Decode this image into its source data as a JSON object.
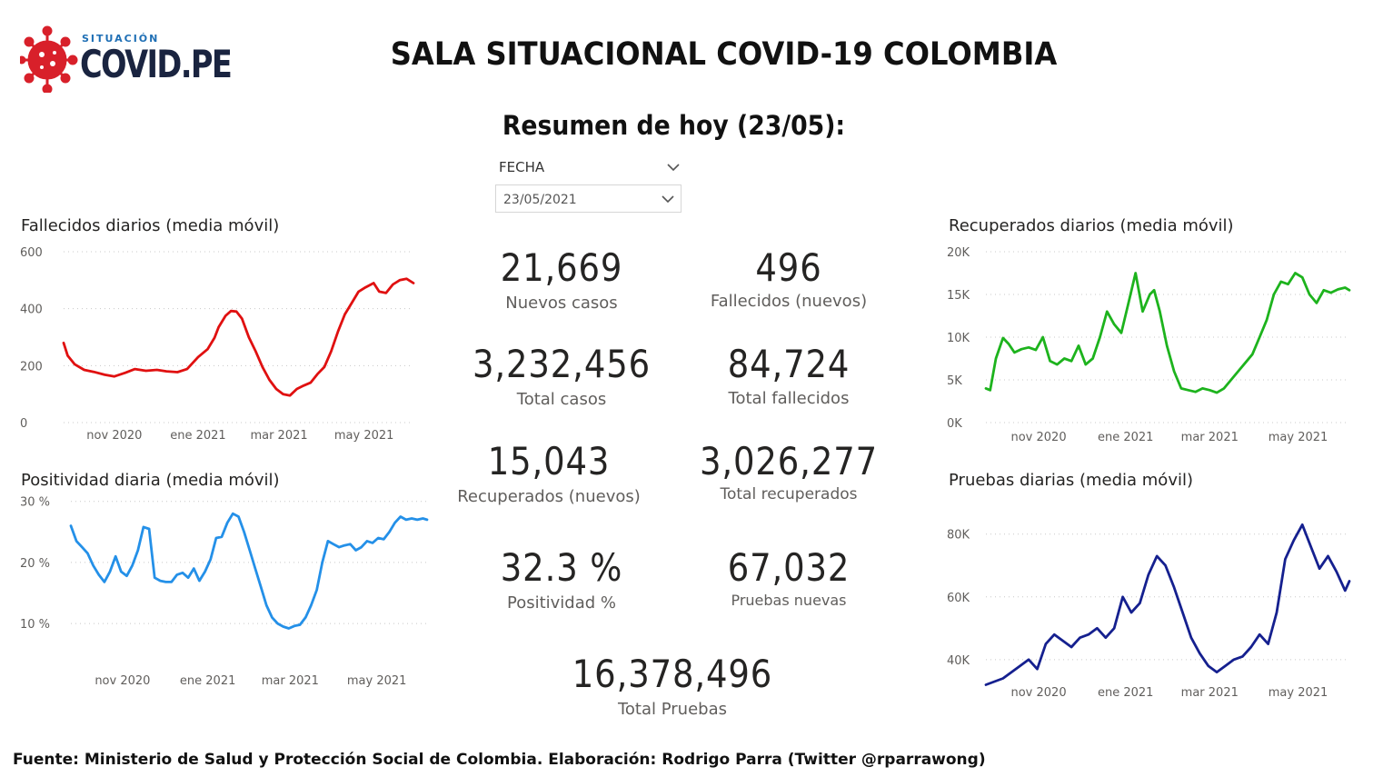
{
  "logo": {
    "small_text": "SITUACIÓN",
    "big_text": "COVID.PE",
    "icon": "virus-icon"
  },
  "header": {
    "title": "SALA SITUACIONAL COVID-19 COLOMBIA",
    "subtitle": "Resumen de hoy (23/05):"
  },
  "slicer": {
    "label": "FECHA",
    "value": "23/05/2021",
    "icon": "chevron-down-icon"
  },
  "kpis": {
    "nuevos_casos": {
      "value": "21,669",
      "label": "Nuevos casos"
    },
    "fallecidos_nuevos": {
      "value": "496",
      "label": "Fallecidos (nuevos)"
    },
    "total_casos": {
      "value": "3,232,456",
      "label": "Total casos"
    },
    "total_fallecidos": {
      "value": "84,724",
      "label": "Total fallecidos"
    },
    "recuperados_nuevos": {
      "value": "15,043",
      "label": "Recuperados (nuevos)"
    },
    "total_recuperados": {
      "value": "3,026,277",
      "label": "Total recuperados"
    },
    "positividad": {
      "value": "32.3 %",
      "label": "Positividad %"
    },
    "pruebas_nuevas": {
      "value": "67,032",
      "label": "Pruebas nuevas"
    },
    "total_pruebas": {
      "value": "16,378,496",
      "label": "Total Pruebas"
    }
  },
  "chart_data": [
    {
      "id": "fallecidos",
      "type": "line",
      "title": "Fallecidos diarios (media móvil)",
      "color": "#e01010",
      "ylim": [
        0,
        600
      ],
      "yticks": [
        0,
        200,
        400,
        600
      ],
      "ytick_labels": [
        "0",
        "200",
        "400",
        "600"
      ],
      "xticks": [
        "nov 2020",
        "ene 2021",
        "mar 2021",
        "may 2021"
      ],
      "xtick_positions": [
        37,
        98,
        157,
        219
      ],
      "xlim": [
        0,
        255
      ],
      "grid": true,
      "x": [
        0,
        3,
        8,
        15,
        22,
        30,
        37,
        45,
        52,
        60,
        68,
        75,
        83,
        90,
        98,
        105,
        110,
        113,
        118,
        122,
        126,
        130,
        135,
        140,
        145,
        150,
        155,
        160,
        165,
        170,
        175,
        180,
        185,
        190,
        195,
        200,
        205,
        210,
        215,
        220,
        226,
        230,
        235,
        240,
        245,
        250,
        255
      ],
      "y": [
        280,
        235,
        205,
        185,
        178,
        168,
        162,
        175,
        188,
        182,
        185,
        180,
        177,
        188,
        230,
        258,
        298,
        335,
        375,
        392,
        390,
        365,
        300,
        250,
        195,
        150,
        118,
        100,
        95,
        118,
        130,
        140,
        170,
        195,
        250,
        320,
        380,
        420,
        460,
        475,
        490,
        460,
        455,
        485,
        500,
        505,
        490
      ]
    },
    {
      "id": "positividad",
      "type": "line",
      "title": "Positividad diaria (media móvil)",
      "color": "#2490e8",
      "ylim": [
        6,
        31
      ],
      "yticks": [
        10,
        20,
        30
      ],
      "ytick_labels": [
        "10 %",
        "20 %",
        "30 %"
      ],
      "xticks": [
        "nov 2020",
        "ene 2021",
        "mar 2021",
        "may 2021"
      ],
      "xtick_positions": [
        37,
        98,
        157,
        219
      ],
      "xlim": [
        0,
        255
      ],
      "grid": true,
      "x": [
        0,
        4,
        8,
        12,
        16,
        20,
        24,
        28,
        32,
        36,
        40,
        44,
        48,
        52,
        56,
        60,
        64,
        68,
        72,
        76,
        80,
        84,
        88,
        92,
        96,
        100,
        104,
        108,
        112,
        116,
        120,
        124,
        128,
        132,
        136,
        140,
        144,
        148,
        152,
        156,
        160,
        164,
        168,
        172,
        176,
        180,
        184,
        188,
        192,
        196,
        200,
        204,
        208,
        212,
        216,
        220,
        224,
        228,
        232,
        236,
        240,
        244,
        248,
        252,
        255
      ],
      "y": [
        26,
        23.5,
        22.5,
        21.5,
        19.5,
        18,
        16.8,
        18.5,
        21,
        18.5,
        17.8,
        19.5,
        22,
        25.8,
        25.5,
        17.5,
        17,
        16.8,
        16.8,
        18,
        18.3,
        17.5,
        19,
        17,
        18.5,
        20.5,
        24,
        24.2,
        26.5,
        28,
        27.5,
        25,
        22,
        19,
        16,
        13,
        11,
        10,
        9.5,
        9.2,
        9.6,
        9.8,
        11,
        13,
        15.5,
        20,
        23.5,
        23,
        22.5,
        22.8,
        23,
        22,
        22.5,
        23.5,
        23.2,
        24,
        23.8,
        25,
        26.5,
        27.5,
        27,
        27.2,
        27,
        27.2,
        27
      ]
    },
    {
      "id": "recuperados",
      "type": "line",
      "title": "Recuperados diarios (media móvil)",
      "color": "#1db31d",
      "ylim": [
        0,
        20000
      ],
      "yticks": [
        0,
        5000,
        10000,
        15000,
        20000
      ],
      "ytick_labels": [
        "0K",
        "5K",
        "10K",
        "15K",
        "20K"
      ],
      "xticks": [
        "nov 2020",
        "ene 2021",
        "mar 2021",
        "may 2021"
      ],
      "xtick_positions": [
        37,
        98,
        157,
        219
      ],
      "xlim": [
        0,
        255
      ],
      "grid": true,
      "x": [
        0,
        3,
        7,
        12,
        16,
        20,
        25,
        30,
        35,
        40,
        45,
        50,
        55,
        60,
        65,
        70,
        75,
        80,
        85,
        90,
        95,
        100,
        105,
        110,
        115,
        118,
        122,
        127,
        132,
        137,
        142,
        147,
        152,
        157,
        162,
        167,
        172,
        177,
        182,
        187,
        192,
        197,
        202,
        207,
        212,
        217,
        222,
        227,
        232,
        237,
        242,
        247,
        252,
        255
      ],
      "y": [
        4000,
        3800,
        7500,
        9900,
        9200,
        8200,
        8600,
        8800,
        8500,
        10000,
        7200,
        6800,
        7500,
        7200,
        9000,
        6800,
        7500,
        10000,
        13000,
        11500,
        10500,
        14000,
        17500,
        13000,
        15000,
        15500,
        13000,
        9000,
        6000,
        4000,
        3800,
        3600,
        4000,
        3800,
        3500,
        4000,
        5000,
        6000,
        7000,
        8000,
        10000,
        12000,
        15000,
        16500,
        16200,
        17500,
        17000,
        15000,
        14000,
        15500,
        15200,
        15600,
        15800,
        15500
      ]
    },
    {
      "id": "pruebas",
      "type": "line",
      "title": "Pruebas diarias (media móvil)",
      "color": "#15208f",
      "ylim": [
        33000,
        86000
      ],
      "yticks": [
        40000,
        60000,
        80000
      ],
      "ytick_labels": [
        "40K",
        "60K",
        "80K"
      ],
      "xticks": [
        "nov 2020",
        "ene 2021",
        "mar 2021",
        "may 2021"
      ],
      "xtick_positions": [
        37,
        98,
        157,
        219
      ],
      "xlim": [
        0,
        255
      ],
      "grid": true,
      "x": [
        0,
        6,
        12,
        18,
        24,
        30,
        36,
        42,
        48,
        54,
        60,
        66,
        72,
        78,
        84,
        90,
        96,
        102,
        108,
        114,
        120,
        126,
        132,
        138,
        144,
        150,
        156,
        162,
        168,
        174,
        180,
        186,
        192,
        198,
        204,
        210,
        216,
        222,
        228,
        234,
        240,
        246,
        252,
        255
      ],
      "y": [
        32000,
        33000,
        34000,
        36000,
        38000,
        40000,
        37000,
        45000,
        48000,
        46000,
        44000,
        47000,
        48000,
        50000,
        47000,
        50000,
        60000,
        55000,
        58000,
        67000,
        73000,
        70000,
        63000,
        55000,
        47000,
        42000,
        38000,
        36000,
        38000,
        40000,
        41000,
        44000,
        48000,
        45000,
        55000,
        72000,
        78000,
        83000,
        76000,
        69000,
        73000,
        68000,
        62000,
        65000
      ]
    }
  ],
  "footer": {
    "source": "Fuente: Ministerio de Salud y Protección Social de Colombia. Elaboración: Rodrigo Parra (Twitter @rparrawong)"
  }
}
